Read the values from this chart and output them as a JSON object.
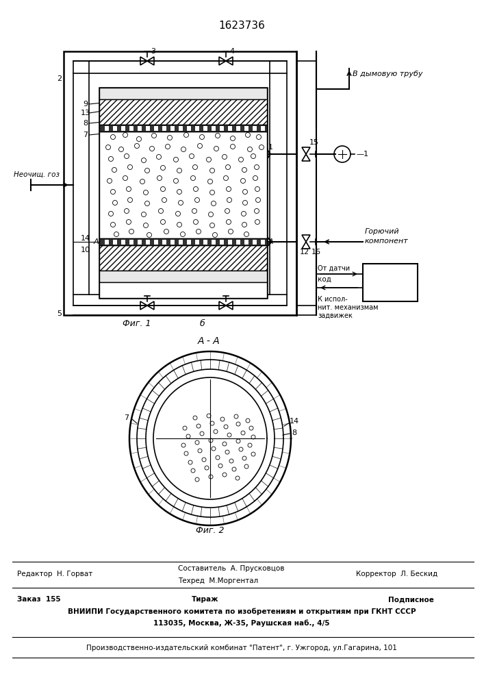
{
  "title": "1623736",
  "fig_label1": "Фиг. 1",
  "fig_label2": "б",
  "fig_label3": "А - А",
  "fig_label4": "Фиг. 2",
  "label_neochish": "Неочищ. гоз",
  "label_vdym": "В дымовую трубу",
  "label_goryuch": "Горючий\nкомпонент",
  "label_otdatchiki": "От датчи",
  "label_kod": "код",
  "label_kispolnit": "К испол-\nнит. механизмам\nзадвижек",
  "bg_color": "#ffffff",
  "line_color": "#000000",
  "footer_line1a": "Редактор  Н. Горват",
  "footer_line1b": "Составитель  А. Прусковцов",
  "footer_line2b": "Техред  М.Моргентал",
  "footer_line2c": "Корректор  Л. Бескид",
  "footer_line3a": "Заказ  155",
  "footer_line3b": "Тираж",
  "footer_line3c": "Подписное",
  "footer_line4": "ВНИИПИ Государственного комитета по изобретениям и открытиям при ГКНТ СССР",
  "footer_line5": "113035, Москва, Ж-35, Раушская наб., 4/5",
  "footer_line6": "Производственно-издательский комбинат \"Патент\", г. Ужгород, ул.Гагарина, 101"
}
